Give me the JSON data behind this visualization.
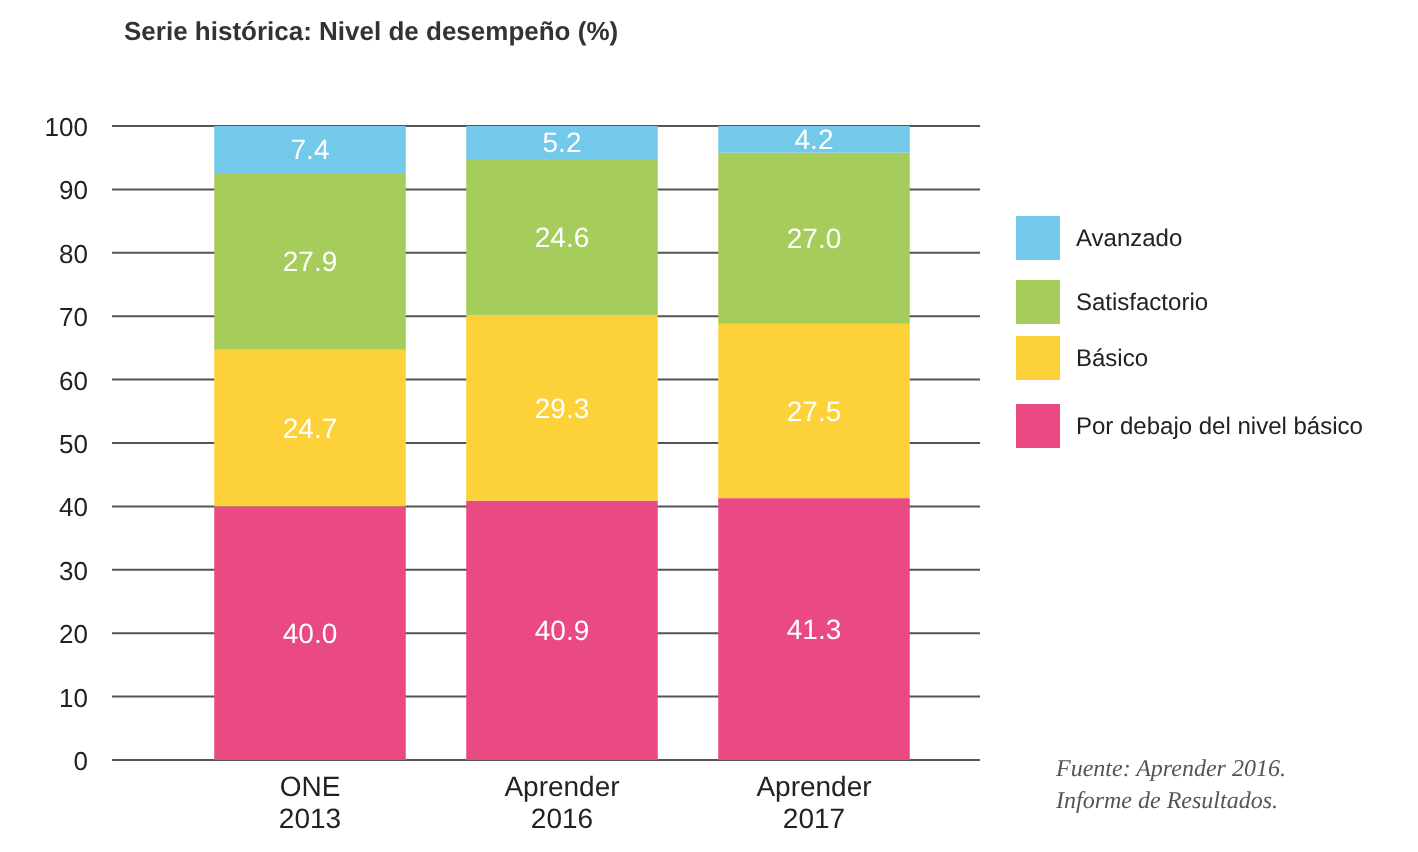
{
  "chart_data": {
    "type": "bar",
    "title": "Serie histórica: Nivel de desempeño (%)",
    "categories": [
      "ONE 2013",
      "Aprender 2016",
      "Aprender 2017"
    ],
    "stacked": true,
    "series": [
      {
        "name": "Por debajo del nivel básico",
        "color": "#e94a83",
        "values": [
          40.0,
          40.9,
          41.3
        ],
        "value_labels": [
          "40.0",
          "40.9",
          "41.3"
        ]
      },
      {
        "name": "Básico",
        "color": "#fdd13a",
        "values": [
          24.7,
          29.3,
          27.5
        ],
        "value_labels": [
          "24.7",
          "29.3",
          "27.5"
        ]
      },
      {
        "name": "Satisfactorio",
        "color": "#a6cd5b",
        "values": [
          27.9,
          24.6,
          27.0
        ],
        "value_labels": [
          "27.9",
          "24.6",
          "27.0"
        ]
      },
      {
        "name": "Avanzado",
        "color": "#73c9ea",
        "values": [
          7.4,
          5.2,
          4.2
        ],
        "value_labels": [
          "7.4",
          "5.2",
          "4.2"
        ]
      }
    ],
    "ylim": [
      0,
      100
    ],
    "yticks": [
      0,
      10,
      20,
      30,
      40,
      50,
      60,
      70,
      80,
      90,
      100
    ],
    "grid": "y",
    "legend": "right",
    "annotations": [
      "Fuente: Aprender 2016. Informe de Resultados."
    ]
  }
}
